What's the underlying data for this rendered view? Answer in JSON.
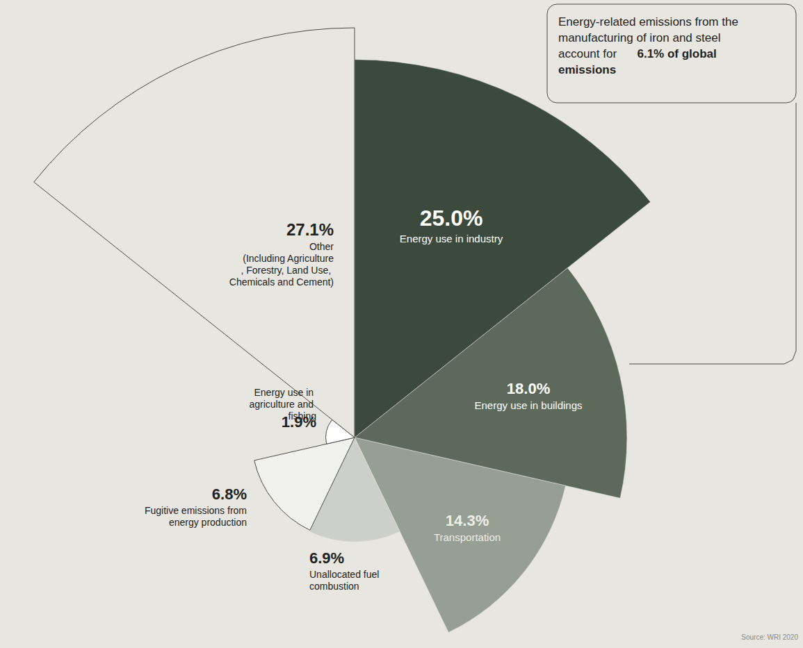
{
  "chart_data": {
    "type": "rose",
    "categories": [
      "Energy use in industry",
      "Energy use in buildings",
      "Transportation",
      "Unallocated fuel combustion",
      "Fugitive emissions from energy production",
      "Energy use in agriculture and fishing",
      "Other (Including Agriculture, Forestry, Land Use, Chemicals and Cement)"
    ],
    "values": [
      25.0,
      18.0,
      14.3,
      6.9,
      6.8,
      1.9,
      27.1
    ],
    "value_labels": [
      "25.0%",
      "18.0%",
      "14.3%",
      "6.9%",
      "6.8%",
      "1.9%",
      "27.1%"
    ],
    "colors": [
      "#3b4a3d",
      "#5d6a5b",
      "#979e94",
      "#cdd0ca",
      "#f1f1ee",
      "#ffffff",
      "#e8e6e0"
    ],
    "data_labels": true,
    "annotation": {
      "text": "Energy-related emissions from the manufacturing of iron and steel account for",
      "highlight": "6.1% of global emissions"
    },
    "source": "Source: WRI 2020"
  }
}
